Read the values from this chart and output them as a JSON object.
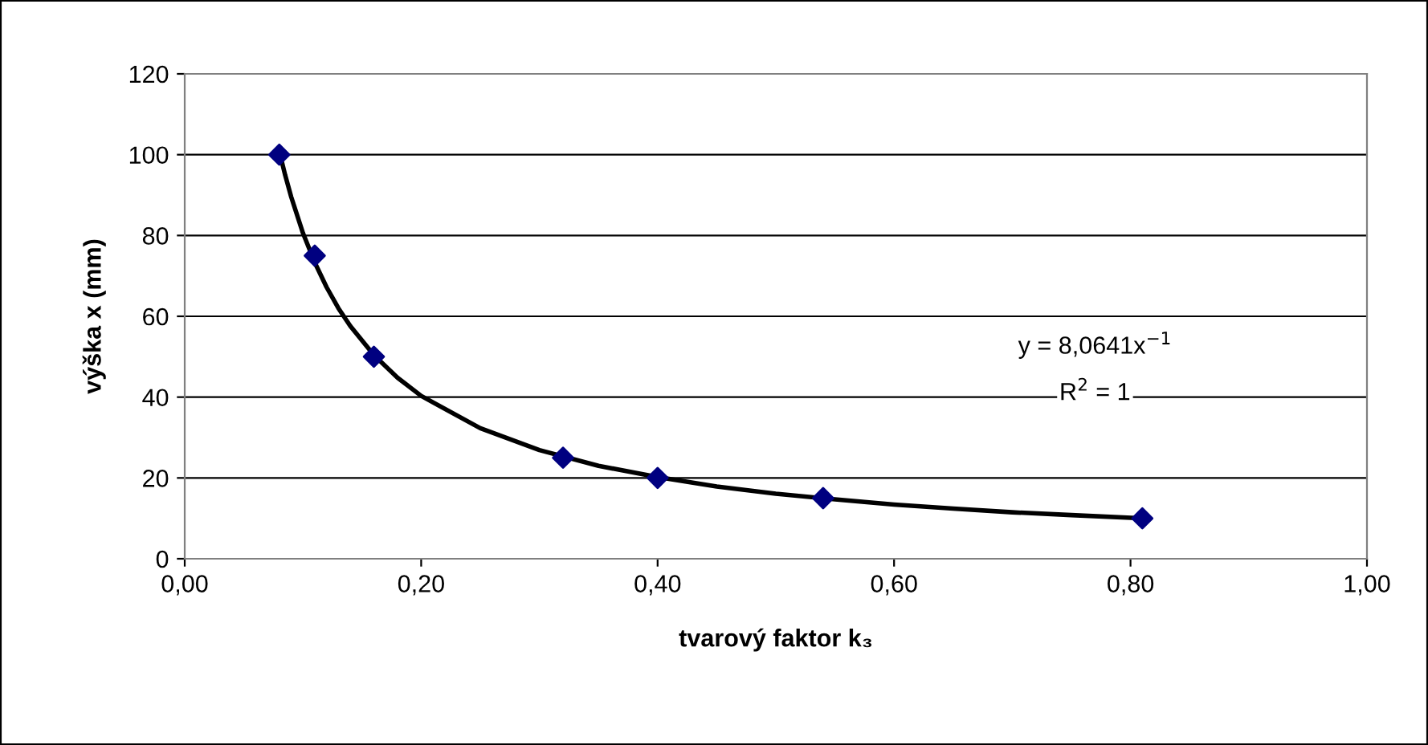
{
  "chart_data": {
    "type": "scatter",
    "xlabel": "tvarový faktor k₃",
    "ylabel": "výška x (mm)",
    "x": [
      0.08,
      0.11,
      0.16,
      0.32,
      0.4,
      0.54,
      0.81
    ],
    "series": [
      {
        "color": "#000080",
        "marker": "diamond",
        "values": [
          100,
          75,
          50,
          25,
          20,
          15,
          10
        ]
      },
      {
        "type": "line",
        "color": "#000000",
        "marker": "none",
        "line_style": "solid",
        "x": [
          0.08,
          0.085,
          0.09,
          0.1,
          0.11,
          0.12,
          0.13,
          0.14,
          0.16,
          0.18,
          0.2,
          0.25,
          0.3,
          0.35,
          0.4,
          0.45,
          0.5,
          0.55,
          0.6,
          0.65,
          0.7,
          0.75,
          0.81
        ],
        "values": [
          100.8,
          94.9,
          89.6,
          80.6,
          73.3,
          67.2,
          62.0,
          57.6,
          50.4,
          44.8,
          40.3,
          32.3,
          26.9,
          23.0,
          20.2,
          17.9,
          16.1,
          14.7,
          13.4,
          12.4,
          11.5,
          10.8,
          10.0
        ]
      }
    ],
    "annotations": [
      "y = 8,0641x$^{−1}$",
      "R$^{2}$ = 1"
    ],
    "xlim": [
      0,
      1
    ],
    "xticks": [
      {
        "value": 0,
        "label": "0,00"
      },
      {
        "value": 0.2,
        "label": "0,20"
      },
      {
        "value": 0.4,
        "label": "0,40"
      },
      {
        "value": 0.6,
        "label": "0,60"
      },
      {
        "value": 0.8,
        "label": "0,80"
      },
      {
        "value": 1,
        "label": "1,00"
      }
    ],
    "ylim": [
      0,
      120
    ],
    "yticks": [
      0,
      20,
      40,
      60,
      80,
      100,
      120
    ],
    "grid": "y",
    "legend": false
  }
}
